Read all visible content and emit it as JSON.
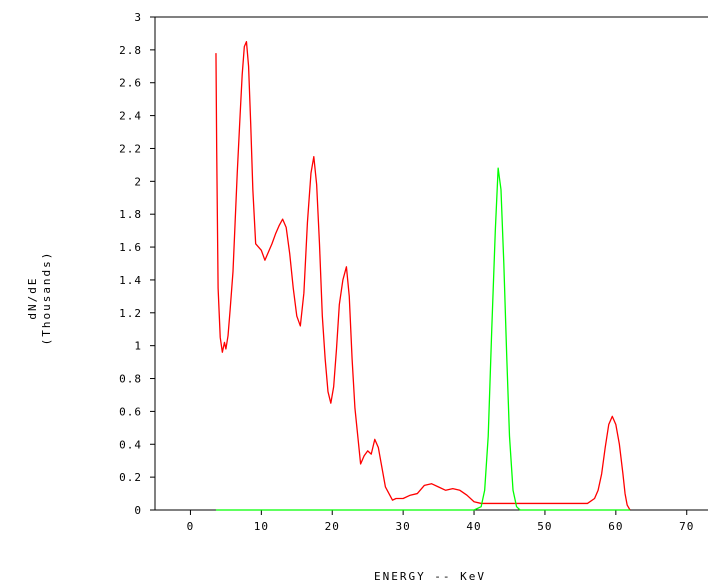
{
  "chart_data": {
    "type": "line",
    "title": "",
    "xlabel": "ENERGY -- KeV",
    "ylabel_line1": "dN/dE",
    "ylabel_line2": "(Thousands)",
    "xlim": [
      -5,
      73
    ],
    "ylim": [
      0,
      3
    ],
    "x_ticks": [
      0,
      10,
      20,
      30,
      40,
      50,
      60,
      70
    ],
    "x_tick_labels": [
      "0",
      "10",
      "20",
      "30",
      "40",
      "50",
      "60",
      "70"
    ],
    "y_ticks": [
      0,
      0.2,
      0.4,
      0.6,
      0.8,
      1,
      1.2,
      1.4,
      1.6,
      1.8,
      2,
      2.2,
      2.4,
      2.6,
      2.8,
      3
    ],
    "y_tick_labels": [
      "0",
      "0.2",
      "0.4",
      "0.6",
      "0.8",
      "1",
      "1.2",
      "1.4",
      "1.6",
      "1.8",
      "2",
      "2.2",
      "2.4",
      "2.6",
      "2.8",
      "3"
    ],
    "grid": false,
    "legend": "none",
    "series": [
      {
        "color": "#ff0000",
        "x": [
          3.6,
          3.7,
          3.9,
          4.2,
          4.5,
          4.8,
          5.0,
          5.3,
          5.6,
          6.0,
          6.3,
          6.6,
          7.0,
          7.3,
          7.6,
          7.9,
          8.2,
          8.5,
          8.8,
          9.2,
          9.6,
          10.0,
          10.5,
          11.0,
          11.5,
          12.0,
          12.5,
          13.0,
          13.5,
          14.0,
          14.5,
          15.0,
          15.5,
          16.0,
          16.5,
          17.0,
          17.4,
          17.8,
          18.2,
          18.6,
          19.0,
          19.4,
          19.8,
          20.2,
          20.6,
          21.0,
          21.5,
          22.0,
          22.4,
          22.8,
          23.2,
          23.6,
          24.0,
          24.5,
          25.0,
          25.5,
          26.0,
          26.5,
          27.0,
          27.5,
          28.0,
          28.5,
          29.0,
          30.0,
          31.0,
          32.0,
          33.0,
          34.0,
          35.0,
          36.0,
          37.0,
          38.0,
          39.0,
          40.0,
          41.0,
          42.0,
          44.0,
          46.0,
          48.0,
          50.0,
          52.0,
          54.0,
          56.0,
          57.0,
          57.5,
          58.0,
          58.5,
          59.0,
          59.5,
          60.0,
          60.5,
          61.0,
          61.3,
          61.6,
          62.0
        ],
        "y": [
          2.78,
          2.2,
          1.35,
          1.05,
          0.96,
          1.02,
          0.98,
          1.06,
          1.22,
          1.45,
          1.75,
          2.05,
          2.4,
          2.65,
          2.82,
          2.85,
          2.7,
          2.35,
          1.95,
          1.62,
          1.6,
          1.58,
          1.52,
          1.57,
          1.62,
          1.68,
          1.73,
          1.77,
          1.72,
          1.56,
          1.35,
          1.18,
          1.12,
          1.32,
          1.75,
          2.05,
          2.15,
          1.98,
          1.62,
          1.18,
          0.92,
          0.72,
          0.65,
          0.75,
          0.98,
          1.25,
          1.4,
          1.48,
          1.3,
          0.92,
          0.62,
          0.45,
          0.28,
          0.33,
          0.36,
          0.34,
          0.43,
          0.38,
          0.26,
          0.14,
          0.1,
          0.06,
          0.07,
          0.07,
          0.09,
          0.1,
          0.15,
          0.16,
          0.14,
          0.12,
          0.13,
          0.12,
          0.09,
          0.05,
          0.04,
          0.04,
          0.04,
          0.04,
          0.04,
          0.04,
          0.04,
          0.04,
          0.04,
          0.07,
          0.12,
          0.22,
          0.38,
          0.52,
          0.57,
          0.52,
          0.4,
          0.22,
          0.1,
          0.03,
          0.0
        ]
      },
      {
        "color": "#00ff00",
        "x": [
          3.6,
          40.0,
          41.0,
          41.5,
          42.0,
          42.5,
          43.0,
          43.4,
          43.8,
          44.2,
          44.6,
          45.0,
          45.5,
          46.0,
          46.5,
          47.0,
          62.0
        ],
        "y": [
          0.0,
          0.0,
          0.02,
          0.12,
          0.45,
          1.1,
          1.7,
          2.08,
          1.95,
          1.5,
          0.95,
          0.45,
          0.12,
          0.02,
          0.0,
          0.0,
          0.0
        ]
      }
    ]
  }
}
